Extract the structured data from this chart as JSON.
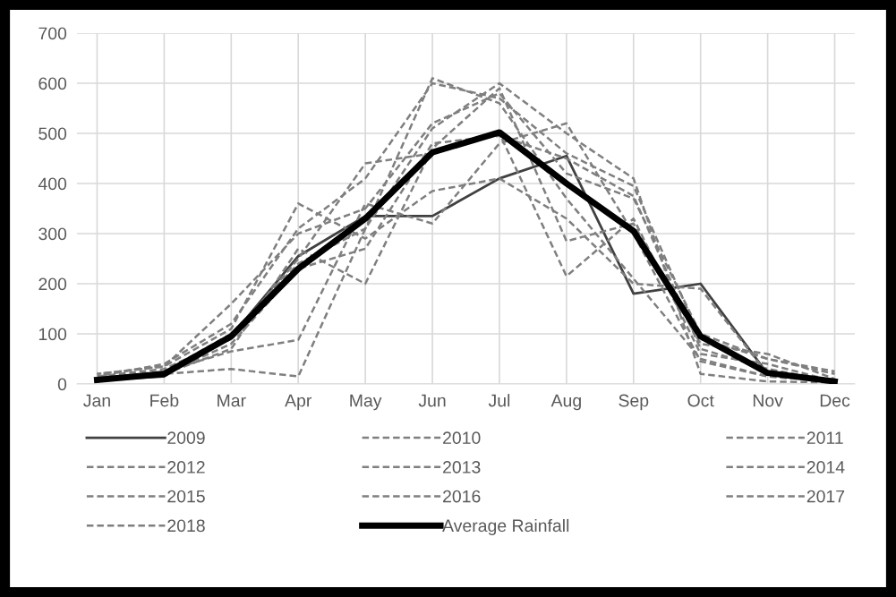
{
  "chart_data": {
    "type": "line",
    "categories": [
      "Jan",
      "Feb",
      "Mar",
      "Apr",
      "May",
      "Jun",
      "Jul",
      "Aug",
      "Sep",
      "Oct",
      "Nov",
      "Dec"
    ],
    "ylim": [
      0,
      700
    ],
    "yticks": [
      0,
      100,
      200,
      300,
      400,
      500,
      600,
      700
    ],
    "grid": true,
    "legend": "bottom",
    "series": [
      {
        "name": "2009",
        "color": "#404040",
        "line_style": "solid",
        "values": [
          8,
          15,
          95,
          255,
          335,
          335,
          410,
          455,
          180,
          200,
          20,
          5
        ]
      },
      {
        "name": "2010",
        "color": "#7f7f7f",
        "line_style": "dashed",
        "values": [
          20,
          35,
          110,
          360,
          290,
          385,
          410,
          330,
          200,
          190,
          20,
          5
        ]
      },
      {
        "name": "2011",
        "color": "#7f7f7f",
        "line_style": "dashed",
        "values": [
          15,
          40,
          120,
          310,
          410,
          600,
          570,
          460,
          395,
          90,
          50,
          25
        ]
      },
      {
        "name": "2012",
        "color": "#7f7f7f",
        "line_style": "dashed",
        "values": [
          5,
          25,
          65,
          88,
          360,
          320,
          480,
          520,
          300,
          45,
          15,
          5
        ]
      },
      {
        "name": "2013",
        "color": "#7f7f7f",
        "line_style": "dashed",
        "values": [
          10,
          20,
          30,
          15,
          310,
          510,
          600,
          500,
          410,
          20,
          5,
          3
        ]
      },
      {
        "name": "2014",
        "color": "#7f7f7f",
        "line_style": "dashed",
        "values": [
          5,
          20,
          70,
          270,
          200,
          470,
          590,
          285,
          320,
          80,
          60,
          10
        ]
      },
      {
        "name": "2015",
        "color": "#7f7f7f",
        "line_style": "dashed",
        "values": [
          15,
          30,
          90,
          250,
          440,
          460,
          500,
          215,
          330,
          60,
          40,
          5
        ]
      },
      {
        "name": "2016",
        "color": "#7f7f7f",
        "line_style": "dashed",
        "values": [
          10,
          25,
          100,
          240,
          310,
          610,
          560,
          370,
          210,
          50,
          15,
          5
        ]
      },
      {
        "name": "2017",
        "color": "#7f7f7f",
        "line_style": "dashed",
        "values": [
          20,
          35,
          160,
          300,
          350,
          520,
          580,
          420,
          370,
          100,
          50,
          20
        ]
      },
      {
        "name": "2018",
        "color": "#7f7f7f",
        "line_style": "dashed",
        "values": [
          10,
          20,
          80,
          230,
          270,
          480,
          495,
          450,
          375,
          70,
          30,
          5
        ]
      },
      {
        "name": "Average Rainfall",
        "color": "#000000",
        "line_style": "solid",
        "values": [
          8,
          20,
          95,
          230,
          330,
          462,
          502,
          400,
          305,
          95,
          22,
          5
        ]
      }
    ]
  }
}
